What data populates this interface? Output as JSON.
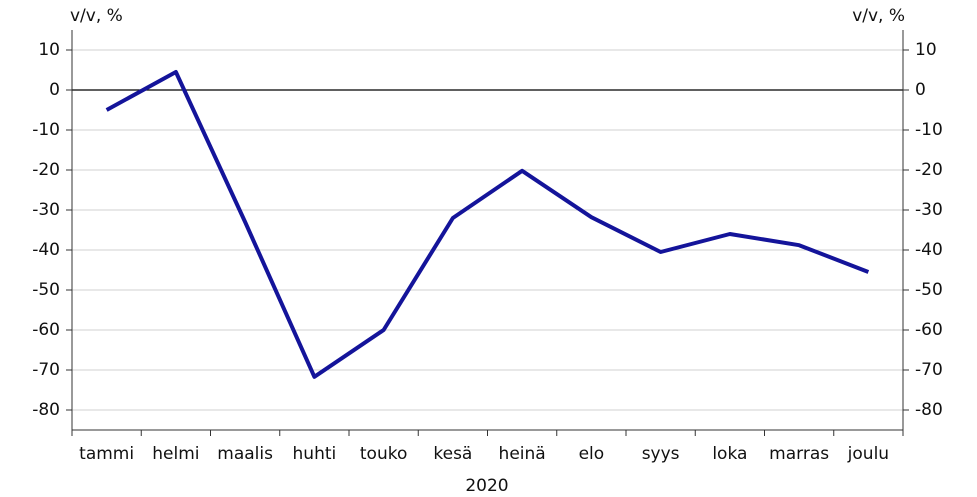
{
  "chart_data": {
    "type": "line",
    "y_label": "v/v, %",
    "y2_label": "v/v, %",
    "x_label": "2020",
    "categories": [
      "tammi",
      "helmi",
      "maalis",
      "huhti",
      "touko",
      "kesä",
      "heinä",
      "elo",
      "syys",
      "loka",
      "marras",
      "joulu"
    ],
    "series": [
      {
        "name": "v/v",
        "color": "#14149a",
        "values": [
          -5,
          4.5,
          -33,
          -71.7,
          -60,
          -32,
          -20.2,
          -31.8,
          -40.5,
          -36,
          -38.8,
          -45.5
        ]
      }
    ],
    "ylim": [
      -85,
      15
    ],
    "yticks": [
      10,
      0,
      -10,
      -20,
      -30,
      -40,
      -50,
      -60,
      -70,
      -80
    ],
    "y2lim": [
      -85,
      15
    ],
    "y2ticks": [
      10,
      0,
      -10,
      -20,
      -30,
      -40,
      -50,
      -60,
      -70,
      -80
    ],
    "grid": true
  }
}
